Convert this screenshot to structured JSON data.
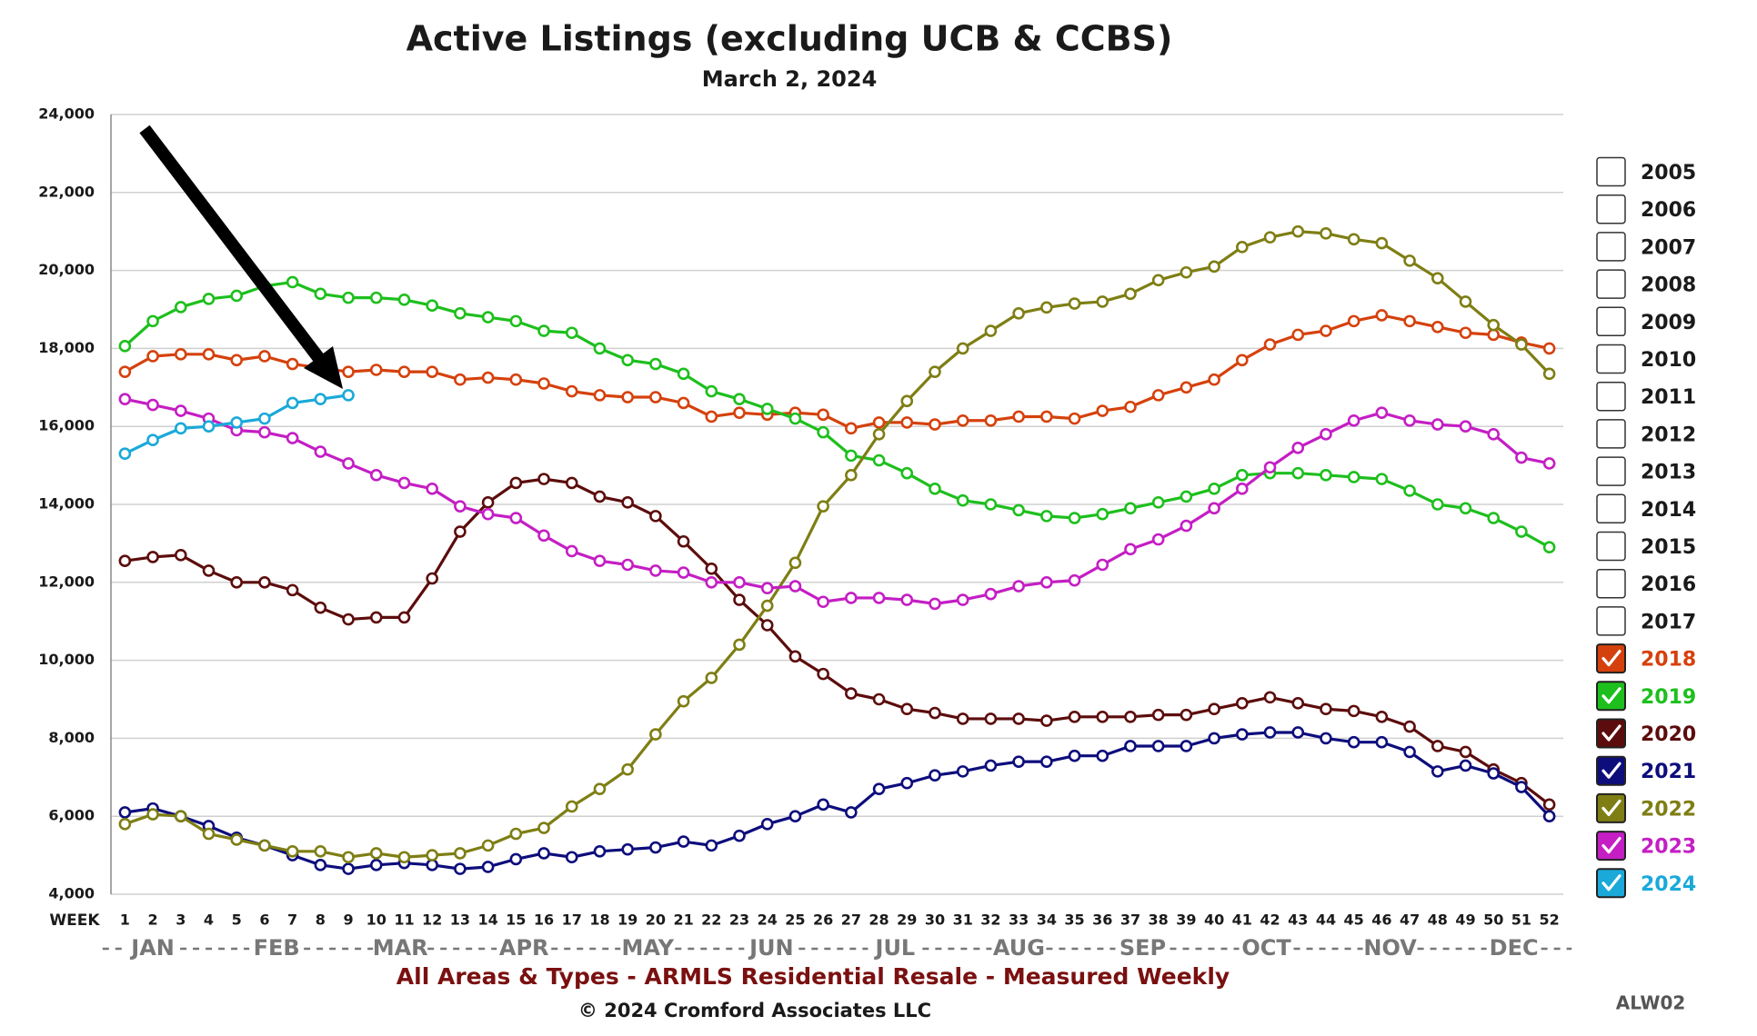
{
  "chart_data": {
    "type": "line",
    "title": "Active Listings (excluding UCB & CCBS)",
    "subtitle": "March 2, 2024",
    "x_axis_label": "WEEK",
    "months": [
      "JAN",
      "FEB",
      "MAR",
      "APR",
      "MAY",
      "JUN",
      "JUL",
      "AUG",
      "SEP",
      "OCT",
      "NOV",
      "DEC"
    ],
    "footer": "All Areas & Types - ARMLS Residential Resale - Measured Weekly",
    "copyright": "© 2024 Cromford Associates LLC",
    "code": "ALW02",
    "grid": true,
    "x": [
      1,
      2,
      3,
      4,
      5,
      6,
      7,
      8,
      9,
      10,
      11,
      12,
      13,
      14,
      15,
      16,
      17,
      18,
      19,
      20,
      21,
      22,
      23,
      24,
      25,
      26,
      27,
      28,
      29,
      30,
      31,
      32,
      33,
      34,
      35,
      36,
      37,
      38,
      39,
      40,
      41,
      42,
      43,
      44,
      45,
      46,
      47,
      48,
      49,
      50,
      51,
      52
    ],
    "xlim": [
      0.5,
      52.5
    ],
    "xticks": [
      1,
      2,
      3,
      4,
      5,
      6,
      7,
      8,
      9,
      10,
      11,
      12,
      13,
      14,
      15,
      16,
      17,
      18,
      19,
      20,
      21,
      22,
      23,
      24,
      25,
      26,
      27,
      28,
      29,
      30,
      31,
      32,
      33,
      34,
      35,
      36,
      37,
      38,
      39,
      40,
      41,
      42,
      43,
      44,
      45,
      46,
      47,
      48,
      49,
      50,
      51,
      52
    ],
    "ylim": [
      4000,
      24000
    ],
    "yticks": [
      {
        "value": 4000,
        "label": "4,000"
      },
      {
        "value": 6000,
        "label": "6,000"
      },
      {
        "value": 8000,
        "label": "8,000"
      },
      {
        "value": 10000,
        "label": "10,000"
      },
      {
        "value": 12000,
        "label": "12,000"
      },
      {
        "value": 14000,
        "label": "14,000"
      },
      {
        "value": 16000,
        "label": "16,000"
      },
      {
        "value": 18000,
        "label": "18,000"
      },
      {
        "value": 20000,
        "label": "20,000"
      },
      {
        "value": 22000,
        "label": "22,000"
      },
      {
        "value": 24000,
        "label": "24,000"
      }
    ],
    "legend_unchecked": [
      "2005",
      "2006",
      "2007",
      "2008",
      "2009",
      "2010",
      "2011",
      "2012",
      "2013",
      "2014",
      "2015",
      "2016",
      "2017"
    ],
    "series": [
      {
        "name": "2018",
        "color": "#d5410c",
        "values": [
          17400,
          17800,
          17850,
          17850,
          17700,
          17800,
          17600,
          17500,
          17400,
          17450,
          17400,
          17400,
          17200,
          17250,
          17200,
          17100,
          16900,
          16800,
          16750,
          16750,
          16600,
          16250,
          16350,
          16300,
          16350,
          16300,
          15950,
          16100,
          16100,
          16050,
          16150,
          16150,
          16250,
          16250,
          16200,
          16400,
          16500,
          16800,
          17000,
          17200,
          17700,
          18100,
          18350,
          18450,
          18700,
          18850,
          18700,
          18550,
          18400,
          18350,
          18150,
          18000
        ]
      },
      {
        "name": "2019",
        "color": "#1dbf1d",
        "values": [
          18060,
          18700,
          19060,
          19270,
          19350,
          19600,
          19700,
          19400,
          19300,
          19300,
          19250,
          19100,
          18900,
          18800,
          18700,
          18450,
          18400,
          18000,
          17700,
          17600,
          17350,
          16900,
          16700,
          16450,
          16200,
          15850,
          15250,
          15130,
          14800,
          14400,
          14100,
          14000,
          13850,
          13700,
          13650,
          13750,
          13900,
          14050,
          14200,
          14400,
          14750,
          14800,
          14800,
          14750,
          14700,
          14650,
          14350,
          14000,
          13900,
          13650,
          13300,
          12900
        ]
      },
      {
        "name": "2020",
        "color": "#5c0c0c",
        "values": [
          12550,
          12650,
          12700,
          12300,
          12000,
          12000,
          11800,
          11350,
          11050,
          11100,
          11100,
          12100,
          13300,
          14050,
          14550,
          14650,
          14550,
          14200,
          14050,
          13700,
          13050,
          12350,
          11550,
          10900,
          10100,
          9650,
          9150,
          9000,
          8750,
          8650,
          8500,
          8500,
          8500,
          8450,
          8550,
          8550,
          8550,
          8600,
          8600,
          8750,
          8900,
          9050,
          8900,
          8750,
          8700,
          8550,
          8300,
          7800,
          7650,
          7200,
          6850,
          6300
        ]
      },
      {
        "name": "2021",
        "color": "#0d0d7c",
        "values": [
          6100,
          6200,
          6000,
          5750,
          5450,
          5250,
          5000,
          4750,
          4650,
          4750,
          4800,
          4750,
          4650,
          4700,
          4900,
          5050,
          4950,
          5100,
          5150,
          5200,
          5350,
          5250,
          5500,
          5800,
          6000,
          6300,
          6100,
          6700,
          6850,
          7050,
          7150,
          7300,
          7400,
          7400,
          7550,
          7550,
          7800,
          7800,
          7800,
          8000,
          8100,
          8150,
          8150,
          8000,
          7900,
          7900,
          7650,
          7150,
          7300,
          7100,
          6750,
          6000
        ]
      },
      {
        "name": "2022",
        "color": "#7e7e14",
        "values": [
          5800,
          6050,
          6000,
          5550,
          5400,
          5250,
          5100,
          5100,
          4950,
          5050,
          4950,
          5000,
          5050,
          5250,
          5550,
          5700,
          6250,
          6700,
          7200,
          8100,
          8950,
          9550,
          10400,
          11400,
          12500,
          13950,
          14750,
          15800,
          16650,
          17400,
          18000,
          18450,
          18900,
          19050,
          19150,
          19200,
          19400,
          19750,
          19950,
          20100,
          20600,
          20850,
          21000,
          20950,
          20800,
          20700,
          20250,
          19800,
          19200,
          18600,
          18100,
          17350
        ]
      },
      {
        "name": "2023",
        "color": "#c41ec4",
        "values": [
          16700,
          16550,
          16400,
          16200,
          15900,
          15850,
          15700,
          15350,
          15050,
          14750,
          14550,
          14400,
          13950,
          13750,
          13650,
          13200,
          12800,
          12550,
          12450,
          12300,
          12250,
          12000,
          12000,
          11850,
          11900,
          11500,
          11600,
          11600,
          11550,
          11450,
          11550,
          11700,
          11900,
          12000,
          12050,
          12450,
          12850,
          13100,
          13450,
          13900,
          14400,
          14950,
          15450,
          15800,
          16150,
          16350,
          16150,
          16050,
          16000,
          15800,
          15200,
          15050
        ]
      },
      {
        "name": "2024",
        "color": "#1aa9d9",
        "values": [
          15300,
          15650,
          15950,
          16000,
          16100,
          16200,
          16600,
          16700,
          16800,
          null,
          null,
          null,
          null,
          null,
          null,
          null,
          null,
          null,
          null,
          null,
          null,
          null,
          null,
          null,
          null,
          null,
          null,
          null,
          null,
          null,
          null,
          null,
          null,
          null,
          null,
          null,
          null,
          null,
          null,
          null,
          null,
          null,
          null,
          null,
          null,
          null,
          null,
          null,
          null,
          null,
          null,
          null
        ]
      }
    ]
  }
}
